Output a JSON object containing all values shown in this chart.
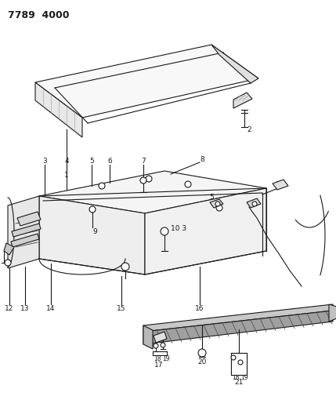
{
  "title": "7789  4000",
  "bg_color": "#ffffff",
  "lc": "#1a1a1a",
  "lw": 0.8,
  "fig_width": 4.29,
  "fig_height": 5.33,
  "dpi": 100,
  "label_fs": 6.5,
  "title_fs": 9
}
